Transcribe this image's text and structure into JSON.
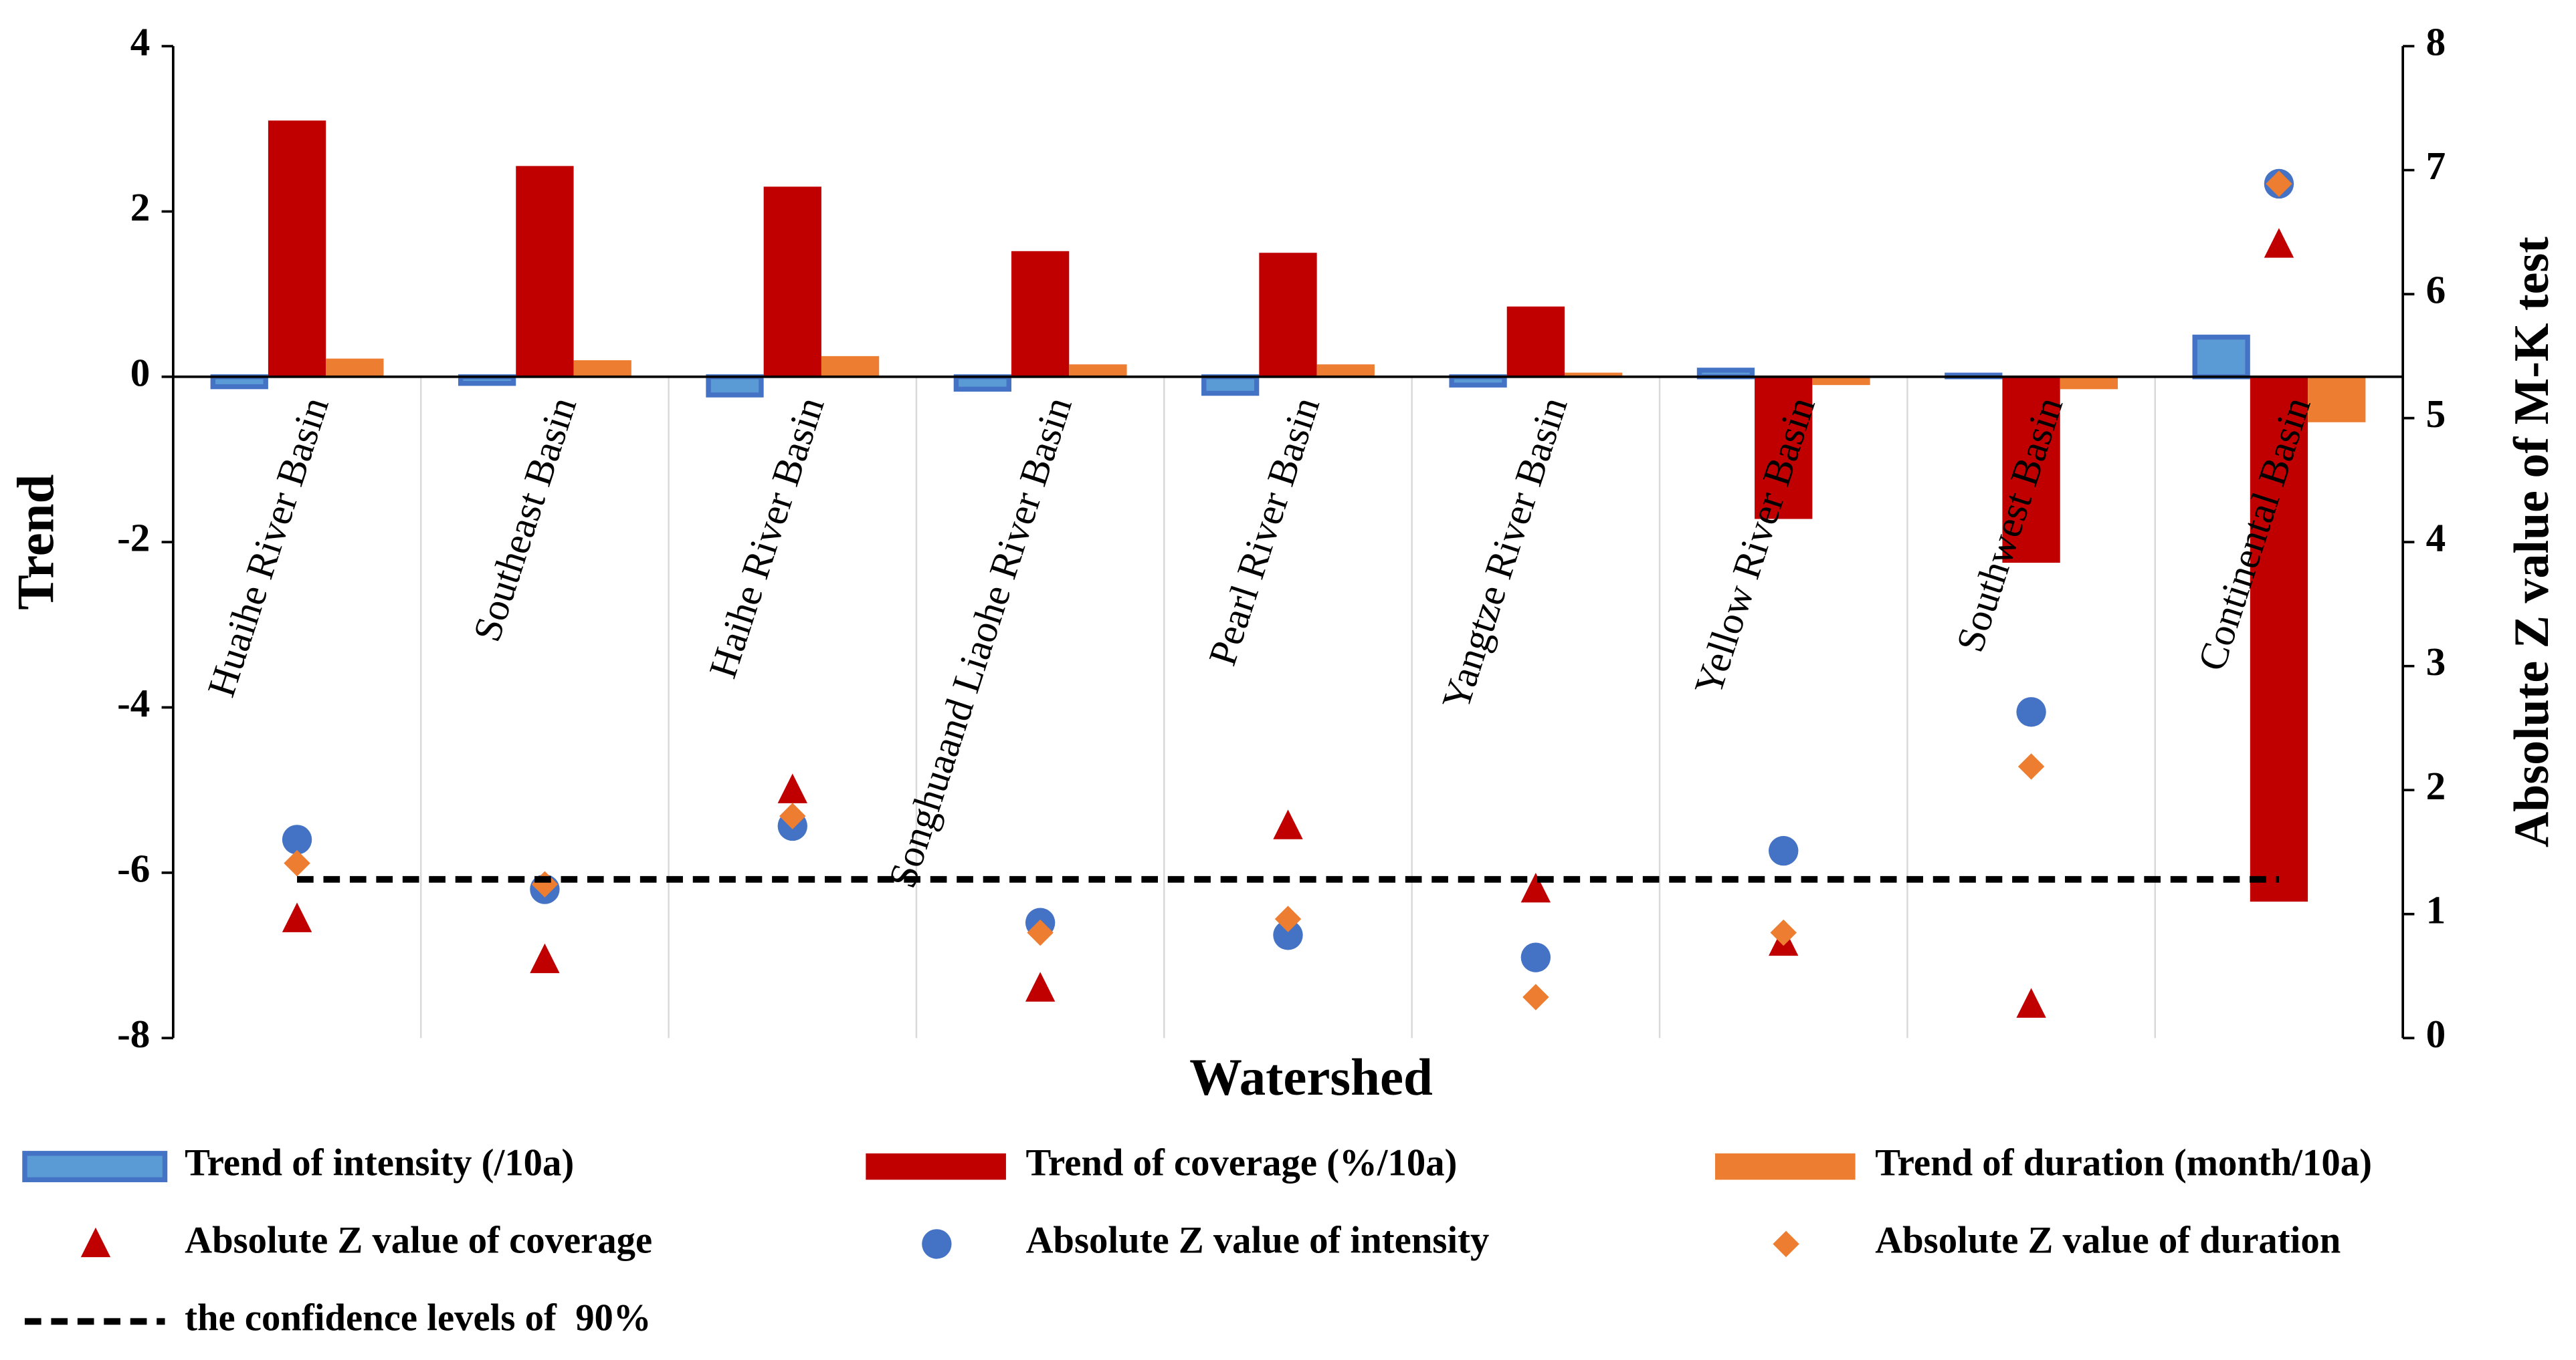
{
  "chart_data": {
    "type": "bar",
    "x_label": "Watershed",
    "y_label": "Trend",
    "y2_label": "Absolute Z value of M-K test",
    "categories": [
      "Huaihe River Basin",
      "Southeast Basin",
      "Haihe River Basin",
      "Songhuaand Liaohe River Basin",
      "Pearl River Basin",
      "Yangtze River Basin",
      "Yellow River Basin",
      "Southwest Basin",
      "Continental Basin"
    ],
    "ylim": [
      -8,
      4
    ],
    "yticks": [
      -8,
      -6,
      -4,
      -2,
      0,
      2,
      4
    ],
    "y2lim": [
      0,
      8
    ],
    "y2ticks": [
      0,
      1,
      2,
      3,
      4,
      5,
      6,
      7,
      8
    ],
    "series": [
      {
        "name": "Trend of intensity (/10a)",
        "type": "bar",
        "color": "#5b9bd5",
        "stroke": "#4472c4",
        "values": [
          -0.12,
          -0.08,
          -0.22,
          -0.15,
          -0.2,
          -0.1,
          0.08,
          0.02,
          0.48
        ]
      },
      {
        "name": "Trend of coverage (%/10a)",
        "type": "bar",
        "color": "#c00000",
        "values": [
          3.1,
          2.55,
          2.3,
          1.52,
          1.5,
          0.85,
          -1.72,
          -2.25,
          -6.35
        ]
      },
      {
        "name": "Trend of duration (month/10a)",
        "type": "bar",
        "color": "#ed7d31",
        "values": [
          0.22,
          0.2,
          0.25,
          0.15,
          0.15,
          0.05,
          -0.1,
          -0.15,
          -0.55
        ]
      },
      {
        "name": "Absolute Z value of coverage",
        "type": "scatter",
        "marker": "triangle",
        "axis": "y2",
        "color": "#c00000",
        "values": [
          0.96,
          0.63,
          2.0,
          0.4,
          1.71,
          1.2,
          0.77,
          0.27,
          6.4
        ]
      },
      {
        "name": "Absolute Z value of intensity",
        "type": "scatter",
        "marker": "circle",
        "axis": "y2",
        "color": "#4472c4",
        "values": [
          1.6,
          1.2,
          1.71,
          0.93,
          0.83,
          0.65,
          1.51,
          2.63,
          6.89
        ]
      },
      {
        "name": "Absolute Z value of duration",
        "type": "scatter",
        "marker": "diamond",
        "axis": "y2",
        "color": "#ed7d31",
        "values": [
          1.41,
          1.24,
          1.79,
          0.85,
          0.96,
          0.33,
          0.85,
          2.19,
          6.89
        ]
      },
      {
        "name": "the confidence levels of  90%",
        "type": "line",
        "dash": true,
        "axis": "y2",
        "color": "#000000",
        "values": [
          1.28,
          1.28,
          1.28,
          1.28,
          1.28,
          1.28,
          1.28,
          1.28,
          1.28
        ]
      }
    ]
  }
}
